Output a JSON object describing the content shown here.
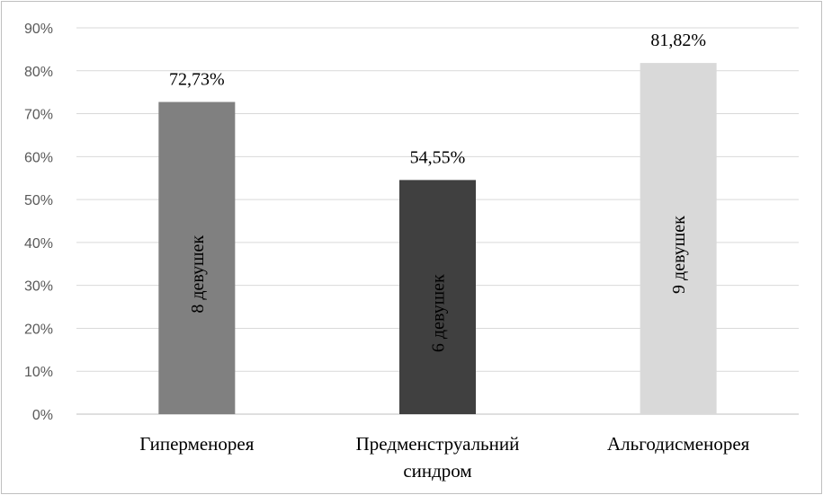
{
  "chart_data": {
    "type": "bar",
    "title": "",
    "xlabel": "",
    "ylabel": "",
    "categories": [
      [
        "Гиперменорея"
      ],
      [
        "Предменструальний",
        "синдром"
      ],
      [
        "Альгодисменорея"
      ]
    ],
    "values": [
      72.73,
      54.55,
      81.82
    ],
    "value_labels": [
      "72,73%",
      "54,55%",
      "81,82%"
    ],
    "inbar_labels": [
      "8 девушек",
      "6 девушек",
      "9 девушек"
    ],
    "bar_colors": [
      "#808080",
      "#404040",
      "#d9d9d9"
    ],
    "inbar_text_colors": [
      "#000000",
      "#000000",
      "#000000"
    ],
    "ylim": [
      0,
      90
    ],
    "yticks": [
      0,
      10,
      20,
      30,
      40,
      50,
      60,
      70,
      80,
      90
    ],
    "ytick_labels": [
      "0%",
      "10%",
      "20%",
      "30%",
      "40%",
      "50%",
      "60%",
      "70%",
      "80%",
      "90%"
    ],
    "grid": true,
    "legend": "none"
  }
}
